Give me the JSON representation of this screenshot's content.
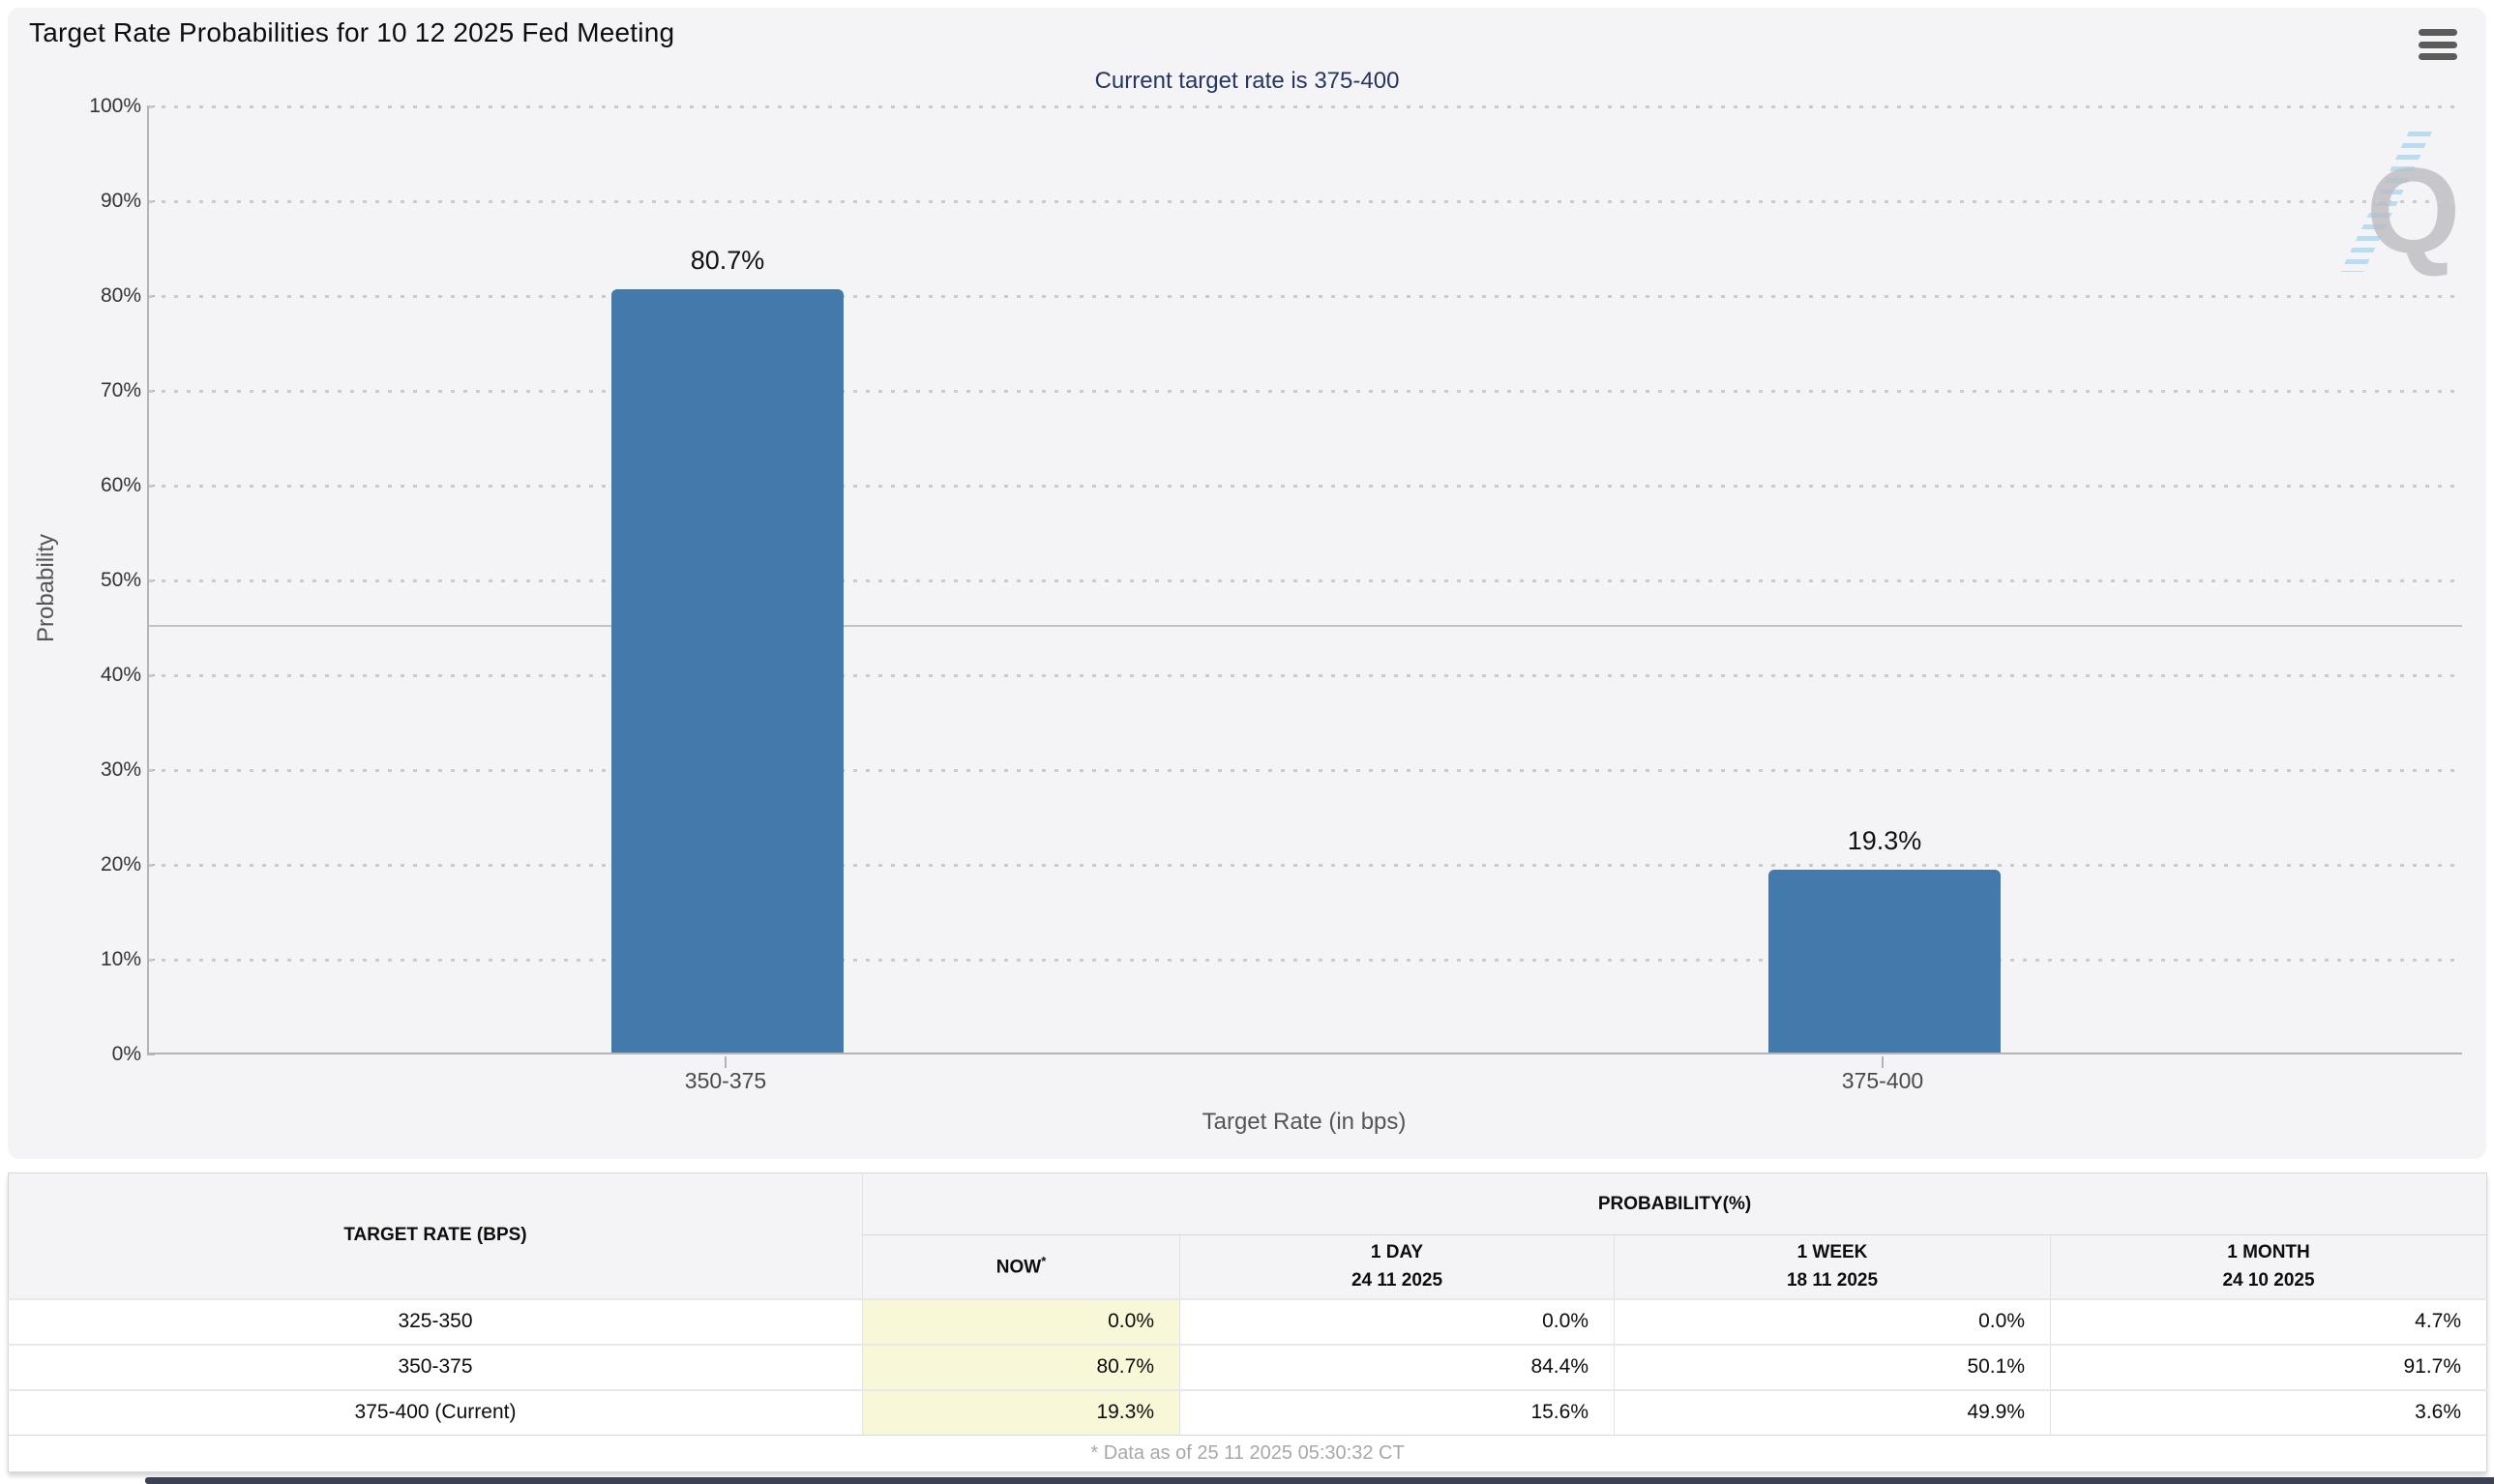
{
  "header": {
    "title": "Target Rate Probabilities for 10 12 2025 Fed Meeting"
  },
  "chart": {
    "subtitle": "Current target rate is 375-400",
    "y_axis_title": "Probability",
    "x_axis_title": "Target Rate (in bps)",
    "y_ticks": [
      "100%",
      "90%",
      "80%",
      "70%",
      "60%",
      "50%",
      "40%",
      "30%",
      "20%",
      "10%",
      "0%"
    ],
    "bar_color": "#4379ab",
    "watermark_letter": "Q"
  },
  "chart_data": {
    "type": "bar",
    "title": "Target Rate Probabilities for 10 12 2025 Fed Meeting",
    "subtitle": "Current target rate is 375-400",
    "categories": [
      "350-375",
      "375-400"
    ],
    "values": [
      80.7,
      19.3
    ],
    "value_labels": [
      "80.7%",
      "19.3%"
    ],
    "xlabel": "Target Rate (in bps)",
    "ylabel": "Probability",
    "ylim": [
      0,
      100
    ],
    "grid": "dotted horizontal lines every 10%",
    "reference_line": 45
  },
  "table": {
    "col1_header": "TARGET RATE (BPS)",
    "group_header": "PROBABILITY(%)",
    "sub_headers": {
      "now": "NOW",
      "now_sup": "*",
      "day_label": "1 DAY",
      "day_date": "24 11 2025",
      "week_label": "1 WEEK",
      "week_date": "18 11 2025",
      "month_label": "1 MONTH",
      "month_date": "24 10 2025"
    },
    "rows": [
      {
        "rate": "325-350",
        "values": [
          "0.0%",
          "0.0%",
          "0.0%",
          "4.7%"
        ]
      },
      {
        "rate": "350-375",
        "values": [
          "80.7%",
          "84.4%",
          "50.1%",
          "91.7%"
        ]
      },
      {
        "rate": "375-400 (Current)",
        "values": [
          "19.3%",
          "15.6%",
          "49.9%",
          "3.6%"
        ]
      }
    ]
  },
  "footer": {
    "note": "* Data as of 25 11 2025 05:30:32 CT"
  }
}
